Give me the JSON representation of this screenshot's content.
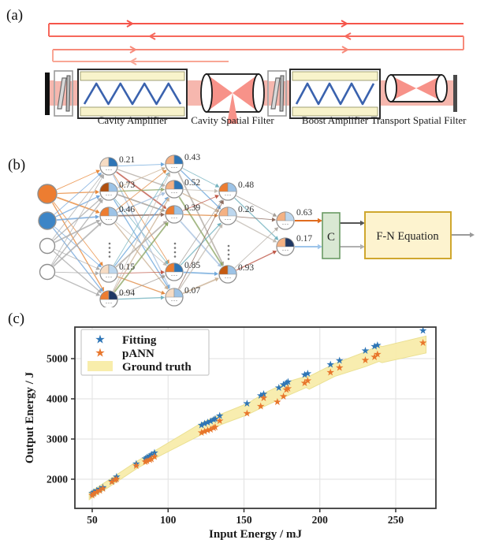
{
  "panels": {
    "a": {
      "label": "(a)",
      "type": "laser-beamline-schematic",
      "component_labels": [
        "Cavity Amplifier",
        "Cavity Spatial Filter",
        "Boost Amplifier",
        "Transport Spatial Filter"
      ],
      "beam_pass_colors": [
        "#f5544a",
        "#f6685c",
        "#f78a7a",
        "#f9a695"
      ],
      "beam_fill": "#f6b7ae",
      "amplifier_fill": "#f8f3cb",
      "zigzag_color": "#3a62ae",
      "bowtie_color": "#f79289"
    },
    "b": {
      "label": "(b)",
      "type": "neural-network-schematic",
      "hidden1_values": [
        "0.21",
        "0.73",
        "0.46",
        "0.15",
        "0.94"
      ],
      "hidden2_values": [
        "0.43",
        "0.52",
        "0.39",
        "0.85",
        "0.07"
      ],
      "hidden3_values": [
        "0.48",
        "0.26",
        "0.93"
      ],
      "output_values": [
        "0.63",
        "0.17"
      ],
      "combiner_label": "C",
      "equation_label": "F-N Equation",
      "input_colors": [
        "#ed7d31",
        "#3d85c6",
        "#ffffff",
        "#ffffff"
      ],
      "hidden1_wedges": [
        [
          "#f6dcc4",
          "#2e75b6"
        ],
        [
          "#b0500f",
          "#9dc3e6"
        ],
        [
          "#ed7d31",
          "#9dc3e6"
        ],
        [
          "#f6dcc4",
          "#bdd7ee"
        ],
        [
          "#ed7d31",
          "#1f3864"
        ]
      ],
      "hidden2_wedges": [
        [
          "#f4b183",
          "#2e75b6"
        ],
        [
          "#f4b183",
          "#2e75b6"
        ],
        [
          "#ed7d31",
          "#9dc3e6"
        ],
        [
          "#ed7d31",
          "#2e75b6"
        ],
        [
          "#f6dcc4",
          "#9dc3e6"
        ]
      ],
      "hidden3_wedges": [
        [
          "#ed7d31",
          "#9dc3e6"
        ],
        [
          "#f4b183",
          "#bdd7ee"
        ],
        [
          "#c55a11",
          "#9dc3e6"
        ]
      ],
      "output_wedges": [
        [
          "#f4b183",
          "#bdd7ee"
        ],
        [
          "#f4b183",
          "#1f3864"
        ]
      ],
      "edge_palette": [
        "#b3aca4",
        "#a49d96",
        "#c2bbb2",
        "#e08b45",
        "#6fa8dc",
        "#8fa868",
        "#8c6a5d",
        "#c05a4a",
        "#74b3c0",
        "#cbb296",
        "#a9c3e0"
      ],
      "output_arrow_colors": [
        "#e06c1f",
        "#9ec5ea"
      ],
      "combiner_fill": "#d9e8d3",
      "combiner_border": "#6a9a64",
      "equation_fill": "#fdf3cf",
      "equation_border": "#cfa72e"
    },
    "c": {
      "label": "(c)"
    }
  },
  "chart_data": {
    "type": "scatter",
    "title": "",
    "xlabel": "Input Energy / mJ",
    "ylabel": "Output Energy / J",
    "xlim": [
      38,
      277
    ],
    "ylim": [
      1270,
      5790
    ],
    "xticks": [
      50,
      100,
      150,
      200,
      250
    ],
    "yticks": [
      2000,
      3000,
      4000,
      5000
    ],
    "grid": true,
    "legend_position": "upper left",
    "series": [
      {
        "name": "Fitting",
        "marker": "star",
        "color": "#2e75b6",
        "points": [
          [
            50,
            1650
          ],
          [
            51,
            1680
          ],
          [
            53,
            1720
          ],
          [
            55,
            1760
          ],
          [
            57,
            1800
          ],
          [
            63,
            1960
          ],
          [
            65,
            2010
          ],
          [
            66,
            2060
          ],
          [
            79,
            2390
          ],
          [
            85,
            2520
          ],
          [
            86,
            2550
          ],
          [
            88,
            2580
          ],
          [
            89,
            2610
          ],
          [
            91,
            2660
          ],
          [
            122,
            3350
          ],
          [
            124,
            3390
          ],
          [
            126,
            3420
          ],
          [
            128,
            3450
          ],
          [
            130,
            3490
          ],
          [
            131,
            3510
          ],
          [
            134,
            3580
          ],
          [
            152,
            3890
          ],
          [
            161,
            4080
          ],
          [
            163,
            4120
          ],
          [
            173,
            4280
          ],
          [
            176,
            4360
          ],
          [
            178,
            4400
          ],
          [
            179,
            4430
          ],
          [
            190,
            4600
          ],
          [
            192,
            4630
          ],
          [
            207,
            4860
          ],
          [
            213,
            4960
          ],
          [
            230,
            5200
          ],
          [
            236,
            5310
          ],
          [
            238,
            5340
          ],
          [
            268,
            5700
          ]
        ]
      },
      {
        "name": "pANN",
        "marker": "star",
        "color": "#e8762c",
        "points": [
          [
            50,
            1600
          ],
          [
            51,
            1640
          ],
          [
            53,
            1680
          ],
          [
            55,
            1720
          ],
          [
            57,
            1770
          ],
          [
            63,
            1940
          ],
          [
            65,
            1990
          ],
          [
            66,
            2010
          ],
          [
            79,
            2340
          ],
          [
            85,
            2440
          ],
          [
            86,
            2460
          ],
          [
            88,
            2490
          ],
          [
            89,
            2510
          ],
          [
            91,
            2560
          ],
          [
            122,
            3160
          ],
          [
            124,
            3190
          ],
          [
            126,
            3220
          ],
          [
            128,
            3240
          ],
          [
            130,
            3280
          ],
          [
            131,
            3300
          ],
          [
            134,
            3460
          ],
          [
            152,
            3640
          ],
          [
            161,
            3820
          ],
          [
            163,
            4030
          ],
          [
            172,
            3930
          ],
          [
            176,
            4060
          ],
          [
            178,
            4230
          ],
          [
            179,
            4260
          ],
          [
            190,
            4400
          ],
          [
            192,
            4460
          ],
          [
            207,
            4660
          ],
          [
            213,
            4780
          ],
          [
            230,
            4970
          ],
          [
            236,
            5050
          ],
          [
            238,
            5110
          ],
          [
            268,
            5400
          ]
        ]
      },
      {
        "name": "Ground truth",
        "marker": "band",
        "color": "#f8edab",
        "edge_color": "#eadf8e",
        "band_x": [
          48,
          60,
          80,
          95,
          122,
          135,
          152,
          165,
          180,
          191,
          193,
          210,
          230,
          239,
          241,
          270
        ],
        "band_low": [
          1490,
          1780,
          2280,
          2590,
          3110,
          3360,
          3600,
          3840,
          4100,
          4280,
          4240,
          4560,
          4800,
          4930,
          4900,
          5140
        ],
        "band_high": [
          1670,
          1960,
          2460,
          2790,
          3400,
          3620,
          3880,
          4170,
          4440,
          4560,
          4560,
          4880,
          5170,
          5330,
          5300,
          5560
        ]
      }
    ]
  }
}
